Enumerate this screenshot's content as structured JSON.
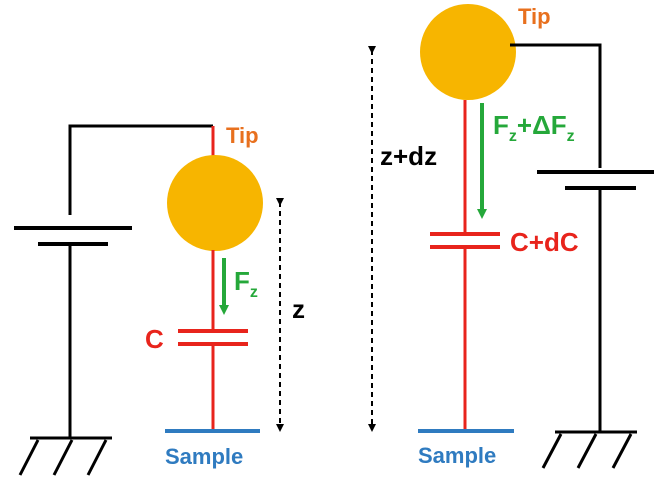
{
  "left": {
    "tip": "Tip",
    "force": "F",
    "force_sub": "z",
    "capacitor": "C",
    "distance": "z",
    "sample": "Sample"
  },
  "right": {
    "tip": "Tip",
    "force": "F",
    "force_sub": "z",
    "force_plus": "+ΔF",
    "force_plus_sub": "z",
    "capacitor": "C+dC",
    "distance": "z+dz",
    "sample": "Sample"
  },
  "colors": {
    "wire": "#000000",
    "tip_lead": "#e8241c",
    "tip_ball": "#f7b500",
    "tip_text": "#e8701e",
    "force": "#25a83a",
    "capacitor": "#e8241c",
    "sample": "#2f7bc0"
  }
}
